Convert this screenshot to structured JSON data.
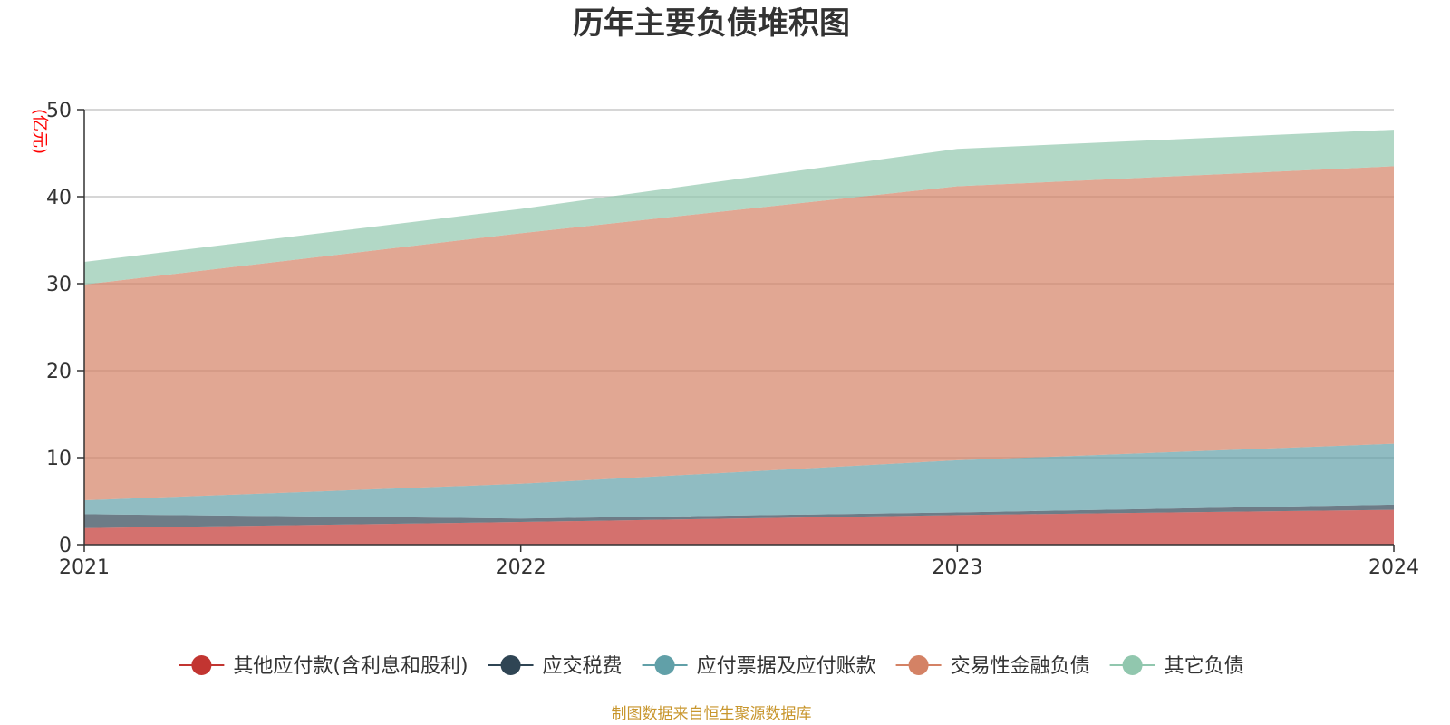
{
  "colors": {
    "unit": "#ff0000",
    "source": "#c8962d",
    "axis": "#333333",
    "grid": "#c8c8c8"
  },
  "chart_data": {
    "type": "area",
    "stacked": true,
    "title": "历年主要负债堆积图",
    "ylabel": "(亿元)",
    "xlabel": "",
    "categories": [
      "2021",
      "2022",
      "2023",
      "2024"
    ],
    "ylim": [
      0,
      50
    ],
    "yticks": [
      0,
      10,
      20,
      30,
      40,
      50
    ],
    "grid": true,
    "legend_position": "bottom",
    "series": [
      {
        "name": "其他应付款(含利息和股利)",
        "color": "#c23531",
        "values": [
          1.9,
          2.6,
          3.4,
          4.0
        ]
      },
      {
        "name": "应交税费",
        "color": "#2f4554",
        "values": [
          1.6,
          0.4,
          0.3,
          0.6
        ]
      },
      {
        "name": "应付票据及应付账款",
        "color": "#61a0a8",
        "values": [
          1.6,
          4.0,
          6.0,
          7.0
        ]
      },
      {
        "name": "交易性金融负债",
        "color": "#d48265",
        "values": [
          24.8,
          28.8,
          31.5,
          31.9
        ]
      },
      {
        "name": "其它负债",
        "color": "#91c7ae",
        "values": [
          2.6,
          2.8,
          4.3,
          4.2
        ]
      }
    ]
  },
  "footer": {
    "source": "制图数据来自恒生聚源数据库"
  }
}
